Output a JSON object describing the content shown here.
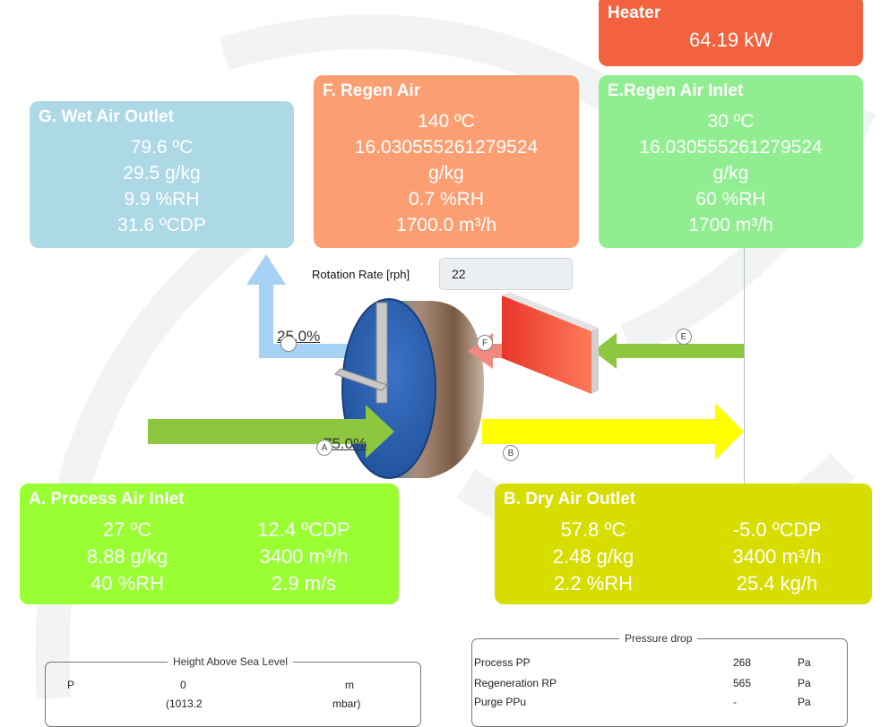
{
  "heater": {
    "title": "Heater",
    "power": "64.19 kW"
  },
  "wet_air_outlet": {
    "title": "G. Wet Air Outlet",
    "lines": [
      "79.6 ºC",
      "29.5 g/kg",
      "9.9 %RH",
      "31.6 ºCDP"
    ]
  },
  "regen_air": {
    "title": "F. Regen Air",
    "lines": [
      "140 ºC",
      "16.030555261279524",
      "g/kg",
      "0.7 %RH",
      "1700.0 m³/h"
    ]
  },
  "regen_air_inlet": {
    "title": "E.Regen Air Inlet",
    "lines": [
      "30 ºC",
      "16.030555261279524",
      "g/kg",
      "60 %RH",
      "1700 m³/h"
    ]
  },
  "process_air_inlet": {
    "title": "A. Process Air Inlet",
    "left": [
      "27 ºC",
      "8.88 g/kg",
      "40 %RH"
    ],
    "right": [
      "12.4 ºCDP",
      "3400 m³/h",
      "2.9 m/s"
    ]
  },
  "dry_air_outlet": {
    "title": "B. Dry Air Outlet",
    "left": [
      "57.8 ºC",
      "2.48 g/kg",
      "2.2 %RH"
    ],
    "right": [
      "-5.0 ºCDP",
      "3400 m³/h",
      "25.4 kg/h"
    ]
  },
  "rotation": {
    "label": "Rotation Rate [rph]",
    "value": "22"
  },
  "sectors": {
    "regen_pct": "25.0%",
    "process_pct": "75.0%"
  },
  "points": {
    "a": "A",
    "b": "B",
    "e": "E",
    "f": "F"
  },
  "height": {
    "legend": "Height Above Sea Level",
    "p_label": "P",
    "value": "0",
    "unit": "m",
    "pressure": "(1013.2",
    "pressure_unit": "mbar)"
  },
  "pressure_drop": {
    "legend": "Pressure drop",
    "rows": [
      {
        "label": "Process PP",
        "value": "268",
        "unit": "Pa"
      },
      {
        "label": "Regeneration RP",
        "value": "565",
        "unit": "Pa"
      },
      {
        "label": "Purge PPu",
        "value": "-",
        "unit": "Pa"
      }
    ]
  },
  "colors": {
    "heater": "#f2623e",
    "wet_air": "#add8e6",
    "regen_air": "#fb9f73",
    "regen_inlet": "#90ee90",
    "process_inlet": "#99ff33",
    "dry_outlet": "#d8dd00"
  }
}
